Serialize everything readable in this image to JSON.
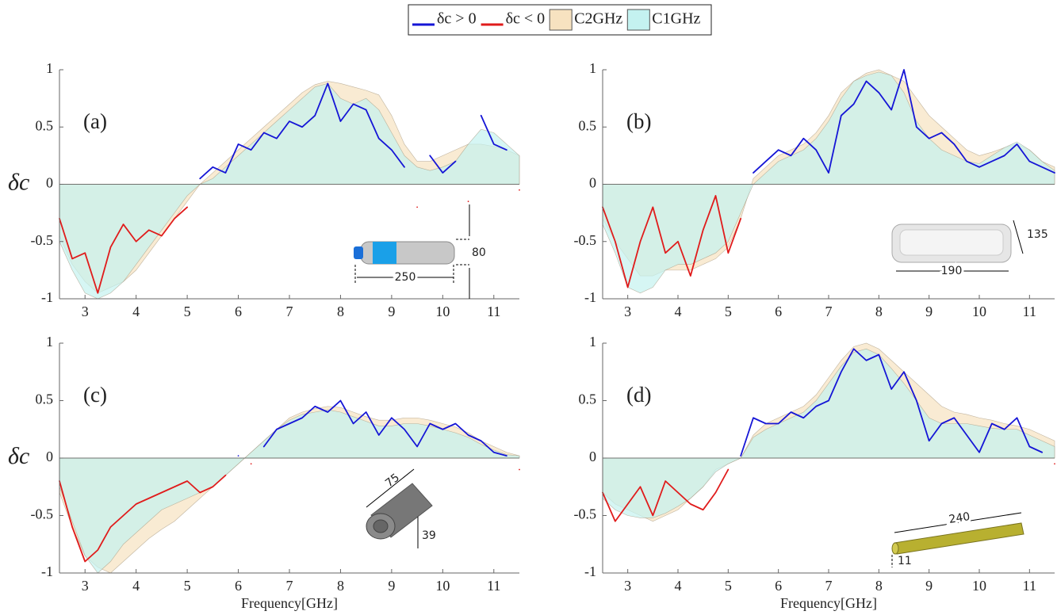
{
  "chart_data": [
    {
      "type": "line",
      "label": "(a)",
      "y_label": "δc",
      "dimension_labels": [
        80,
        250
      ],
      "x": [
        2.5,
        2.75,
        3,
        3.25,
        3.5,
        3.75,
        4,
        4.25,
        4.5,
        4.75,
        5,
        5.25,
        5.5,
        5.75,
        6,
        6.25,
        6.5,
        6.75,
        7,
        7.25,
        7.5,
        7.75,
        8,
        8.25,
        8.5,
        8.75,
        9,
        9.25,
        9.5,
        9.75,
        10,
        10.25,
        10.5,
        10.75,
        11,
        11.25,
        11.5
      ],
      "xlim": [
        2.5,
        11.5
      ],
      "xticks": [
        3,
        4,
        5,
        6,
        7,
        8,
        9,
        10,
        11
      ],
      "ylim": [
        -1,
        1
      ],
      "yticks": [
        -1,
        -0.5,
        0,
        0.5,
        1
      ],
      "series": [
        {
          "name": "C2GHz",
          "kind": "area",
          "color": "#f7e2c0",
          "values": [
            -0.45,
            -0.7,
            -0.85,
            -0.95,
            -0.9,
            -0.85,
            -0.75,
            -0.6,
            -0.45,
            -0.3,
            -0.15,
            0,
            0.1,
            0.2,
            0.3,
            0.4,
            0.5,
            0.6,
            0.7,
            0.8,
            0.87,
            0.9,
            0.88,
            0.85,
            0.82,
            0.78,
            0.6,
            0.35,
            0.2,
            0.2,
            0.25,
            0.3,
            0.35,
            0.35,
            0.33,
            0.3,
            0.25
          ]
        },
        {
          "name": "C1GHz",
          "kind": "area",
          "color": "#c4f2f0",
          "values": [
            -0.5,
            -0.75,
            -0.95,
            -1,
            -0.95,
            -0.85,
            -0.7,
            -0.55,
            -0.4,
            -0.25,
            -0.1,
            0,
            0.05,
            0.15,
            0.25,
            0.35,
            0.45,
            0.55,
            0.65,
            0.75,
            0.85,
            0.88,
            0.75,
            0.7,
            0.75,
            0.65,
            0.45,
            0.25,
            0.15,
            0.12,
            0.15,
            0.2,
            0.35,
            0.48,
            0.45,
            0.35,
            0.25
          ]
        },
        {
          "name": "δc > 0",
          "kind": "line",
          "color": "#1515d6",
          "values": [
            null,
            null,
            null,
            null,
            null,
            null,
            null,
            null,
            null,
            null,
            null,
            0.05,
            0.15,
            0.1,
            0.35,
            0.3,
            0.45,
            0.4,
            0.55,
            0.5,
            0.6,
            0.88,
            0.55,
            0.7,
            0.65,
            0.4,
            0.3,
            0.15,
            null,
            0.25,
            0.1,
            0.2,
            null,
            0.6,
            0.35,
            0.3,
            null
          ]
        },
        {
          "name": "δc < 0",
          "kind": "line",
          "color": "#e01b1b",
          "values": [
            -0.3,
            -0.65,
            -0.6,
            -0.95,
            -0.55,
            -0.35,
            -0.5,
            -0.4,
            -0.45,
            -0.3,
            -0.2,
            null,
            null,
            null,
            null,
            null,
            null,
            null,
            null,
            null,
            null,
            null,
            null,
            null,
            null,
            null,
            null,
            null,
            -0.2,
            null,
            null,
            null,
            -0.15,
            null,
            null,
            null,
            -0.05
          ]
        }
      ]
    },
    {
      "type": "line",
      "label": "(b)",
      "dimension_labels": [
        135,
        190
      ],
      "x": [
        2.5,
        2.75,
        3,
        3.25,
        3.5,
        3.75,
        4,
        4.25,
        4.5,
        4.75,
        5,
        5.25,
        5.5,
        5.75,
        6,
        6.25,
        6.5,
        6.75,
        7,
        7.25,
        7.5,
        7.75,
        8,
        8.25,
        8.5,
        8.75,
        9,
        9.25,
        9.5,
        9.75,
        10,
        10.25,
        10.5,
        10.75,
        11,
        11.25,
        11.5
      ],
      "xlim": [
        2.5,
        11.5
      ],
      "xticks": [
        3,
        4,
        5,
        6,
        7,
        8,
        9,
        10,
        11
      ],
      "ylim": [
        -1,
        1
      ],
      "yticks": [
        -1,
        -0.5,
        0,
        0.5,
        1
      ],
      "series": [
        {
          "kind": "area",
          "color": "#f7e2c0",
          "values": [
            -0.3,
            -0.5,
            -0.65,
            -0.8,
            -0.8,
            -0.75,
            -0.75,
            -0.75,
            -0.7,
            -0.65,
            -0.55,
            -0.3,
            0.05,
            0.15,
            0.25,
            0.3,
            0.35,
            0.45,
            0.6,
            0.8,
            0.9,
            0.97,
            1,
            0.95,
            0.9,
            0.75,
            0.6,
            0.5,
            0.4,
            0.3,
            0.25,
            0.28,
            0.32,
            0.35,
            0.3,
            0.2,
            0.15
          ]
        },
        {
          "kind": "area",
          "color": "#c4f2f0",
          "values": [
            -0.35,
            -0.6,
            -0.9,
            -0.95,
            -0.9,
            -0.75,
            -0.7,
            -0.7,
            -0.65,
            -0.6,
            -0.5,
            -0.25,
            0,
            0.1,
            0.2,
            0.25,
            0.3,
            0.4,
            0.55,
            0.75,
            0.9,
            0.95,
            0.98,
            0.95,
            0.8,
            0.55,
            0.4,
            0.3,
            0.25,
            0.2,
            0.18,
            0.25,
            0.32,
            0.37,
            0.3,
            0.2,
            0.12
          ]
        },
        {
          "kind": "line",
          "color": "#1515d6",
          "values": [
            null,
            null,
            null,
            null,
            null,
            null,
            null,
            null,
            null,
            null,
            null,
            null,
            0.1,
            0.2,
            0.3,
            0.25,
            0.4,
            0.3,
            0.1,
            0.6,
            0.7,
            0.9,
            0.8,
            0.65,
            1,
            0.5,
            0.4,
            0.45,
            0.35,
            0.2,
            0.15,
            0.2,
            0.25,
            0.35,
            0.2,
            0.15,
            0.1
          ]
        },
        {
          "kind": "line",
          "color": "#e01b1b",
          "values": [
            -0.2,
            -0.5,
            -0.9,
            -0.5,
            -0.2,
            -0.6,
            -0.5,
            -0.8,
            -0.4,
            -0.1,
            -0.6,
            -0.3,
            null,
            null,
            null,
            null,
            null,
            null,
            null,
            null,
            null,
            null,
            null,
            null,
            null,
            null,
            null,
            null,
            null,
            null,
            null,
            null,
            null,
            null,
            null,
            null,
            null
          ]
        }
      ]
    },
    {
      "type": "line",
      "label": "(c)",
      "y_label": "δc",
      "x_label": "Frequency[GHz]",
      "dimension_labels": [
        75,
        39
      ],
      "x": [
        2.5,
        2.75,
        3,
        3.25,
        3.5,
        3.75,
        4,
        4.25,
        4.5,
        4.75,
        5,
        5.25,
        5.5,
        5.75,
        6,
        6.25,
        6.5,
        6.75,
        7,
        7.25,
        7.5,
        7.75,
        8,
        8.25,
        8.5,
        8.75,
        9,
        9.25,
        9.5,
        9.75,
        10,
        10.25,
        10.5,
        10.75,
        11,
        11.25,
        11.5
      ],
      "xlim": [
        2.5,
        11.5
      ],
      "xticks": [
        3,
        4,
        5,
        6,
        7,
        8,
        9,
        10,
        11
      ],
      "ylim": [
        -1,
        1
      ],
      "yticks": [
        -1,
        -0.5,
        0,
        0.5,
        1
      ],
      "series": [
        {
          "kind": "area",
          "color": "#f7e2c0",
          "values": [
            -0.3,
            -0.6,
            -0.85,
            -0.95,
            -1,
            -0.9,
            -0.8,
            -0.7,
            -0.62,
            -0.55,
            -0.45,
            -0.35,
            -0.25,
            -0.15,
            -0.05,
            0.05,
            0.15,
            0.25,
            0.35,
            0.4,
            0.43,
            0.45,
            0.44,
            0.4,
            0.36,
            0.33,
            0.33,
            0.35,
            0.35,
            0.33,
            0.3,
            0.27,
            0.22,
            0.15,
            0.1,
            0.05,
            0.02
          ]
        },
        {
          "kind": "area",
          "color": "#c4f2f0",
          "values": [
            -0.25,
            -0.55,
            -0.85,
            -1,
            -0.9,
            -0.75,
            -0.65,
            -0.55,
            -0.45,
            -0.4,
            -0.35,
            -0.3,
            -0.25,
            -0.15,
            -0.05,
            0.05,
            0.15,
            0.25,
            0.33,
            0.38,
            0.4,
            0.42,
            0.4,
            0.36,
            0.32,
            0.28,
            0.28,
            0.3,
            0.3,
            0.28,
            0.25,
            0.22,
            0.18,
            0.12,
            0.07,
            0.03,
            0.02
          ]
        },
        {
          "kind": "line",
          "color": "#1515d6",
          "values": [
            null,
            null,
            null,
            null,
            null,
            null,
            null,
            null,
            null,
            null,
            null,
            null,
            null,
            null,
            0.02,
            null,
            0.1,
            0.25,
            0.3,
            0.35,
            0.45,
            0.4,
            0.5,
            0.3,
            0.4,
            0.2,
            0.35,
            0.25,
            0.1,
            0.3,
            0.25,
            0.3,
            0.2,
            0.15,
            0.05,
            0.02,
            null
          ]
        },
        {
          "kind": "line",
          "color": "#e01b1b",
          "values": [
            -0.2,
            -0.6,
            -0.9,
            -0.8,
            -0.6,
            -0.5,
            -0.4,
            -0.35,
            -0.3,
            -0.25,
            -0.2,
            -0.3,
            -0.25,
            -0.15,
            null,
            -0.05,
            null,
            null,
            null,
            null,
            null,
            null,
            null,
            null,
            null,
            null,
            null,
            null,
            null,
            null,
            null,
            null,
            null,
            null,
            null,
            null,
            -0.1
          ]
        }
      ]
    },
    {
      "type": "line",
      "label": "(d)",
      "x_label": "Frequency[GHz]",
      "dimension_labels": [
        240,
        11
      ],
      "x": [
        2.5,
        2.75,
        3,
        3.25,
        3.5,
        3.75,
        4,
        4.25,
        4.5,
        4.75,
        5,
        5.25,
        5.5,
        5.75,
        6,
        6.25,
        6.5,
        6.75,
        7,
        7.25,
        7.5,
        7.75,
        8,
        8.25,
        8.5,
        8.75,
        9,
        9.25,
        9.5,
        9.75,
        10,
        10.25,
        10.5,
        10.75,
        11,
        11.25,
        11.5
      ],
      "xlim": [
        2.5,
        11.5
      ],
      "xticks": [
        3,
        4,
        5,
        6,
        7,
        8,
        9,
        10,
        11
      ],
      "ylim": [
        -1,
        1
      ],
      "yticks": [
        -1,
        -0.5,
        0,
        0.5,
        1
      ],
      "series": [
        {
          "kind": "area",
          "color": "#f7e2c0",
          "values": [
            -0.3,
            -0.4,
            -0.45,
            -0.5,
            -0.55,
            -0.5,
            -0.45,
            -0.35,
            -0.25,
            -0.1,
            -0.05,
            0,
            0.2,
            0.3,
            0.35,
            0.4,
            0.45,
            0.55,
            0.7,
            0.85,
            0.97,
            1,
            0.95,
            0.85,
            0.75,
            0.65,
            0.55,
            0.45,
            0.4,
            0.38,
            0.35,
            0.33,
            0.3,
            0.28,
            0.25,
            0.2,
            0.15
          ]
        },
        {
          "kind": "area",
          "color": "#c4f2f0",
          "values": [
            -0.35,
            -0.45,
            -0.5,
            -0.52,
            -0.52,
            -0.48,
            -0.42,
            -0.35,
            -0.25,
            -0.12,
            -0.05,
            0,
            0.18,
            0.25,
            0.3,
            0.35,
            0.4,
            0.5,
            0.65,
            0.8,
            0.92,
            0.95,
            0.9,
            0.78,
            0.65,
            0.5,
            0.35,
            0.3,
            0.3,
            0.3,
            0.28,
            0.26,
            0.25,
            0.25,
            0.2,
            0.15,
            0.1
          ]
        },
        {
          "kind": "line",
          "color": "#1515d6",
          "values": [
            null,
            null,
            null,
            null,
            null,
            null,
            null,
            null,
            null,
            null,
            null,
            0.02,
            0.35,
            0.3,
            0.3,
            0.4,
            0.35,
            0.45,
            0.5,
            0.75,
            0.95,
            0.85,
            0.9,
            0.6,
            0.75,
            0.5,
            0.15,
            0.3,
            0.35,
            0.2,
            0.05,
            0.3,
            0.25,
            0.35,
            0.1,
            0.05,
            null
          ]
        },
        {
          "kind": "line",
          "color": "#e01b1b",
          "values": [
            -0.3,
            -0.55,
            -0.4,
            -0.25,
            -0.5,
            -0.2,
            -0.3,
            -0.4,
            -0.45,
            -0.3,
            -0.1,
            null,
            null,
            null,
            null,
            null,
            null,
            null,
            null,
            null,
            null,
            null,
            null,
            null,
            null,
            null,
            null,
            null,
            null,
            null,
            null,
            null,
            null,
            null,
            null,
            null,
            -0.05
          ]
        }
      ]
    }
  ]
}
